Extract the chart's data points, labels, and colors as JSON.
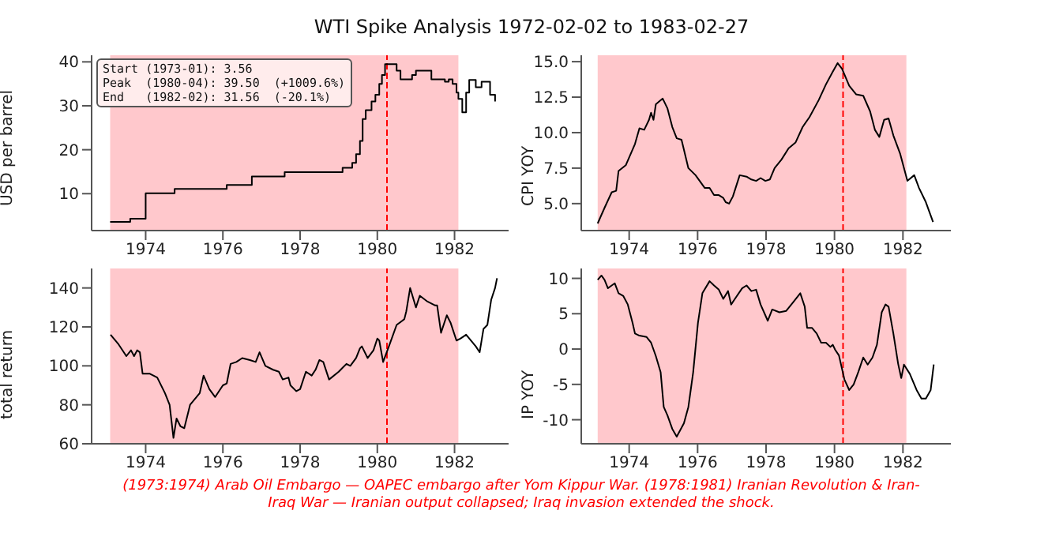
{
  "chart_data": [
    {
      "type": "step",
      "title": "WTI Spike Analysis 1972-02-02 to 1983-02-27",
      "ylabel": "USD per barrel",
      "color": "#000000",
      "annotations": [
        "Start (1973-01): 3.56",
        "Peak  (1980-04): 39.50  (+1009.6%)",
        "End   (1982-02): 31.56  (-20.1%)",
        "(1973:1974) Arab Oil Embargo — OAPEC embargo after Yom Kippur War. (1978:1981) Iranian Revolution & Iran-Iraq War — Iranian output collapsed; Iraq invasion extended the shock."
      ],
      "x": [
        1973.08,
        1973.6,
        1974.0,
        1974.75,
        1976.1,
        1976.75,
        1977.6,
        1979.1,
        1979.35,
        1979.45,
        1979.55,
        1979.62,
        1979.7,
        1979.85,
        1979.95,
        1980.05,
        1980.12,
        1980.2,
        1980.5,
        1980.6,
        1980.75,
        1980.9,
        1981.0,
        1981.3,
        1981.4,
        1981.75,
        1981.85,
        1981.95,
        1982.05,
        1982.1,
        1982.2,
        1982.3,
        1982.38,
        1982.55,
        1982.7,
        1982.8,
        1982.92,
        1983.05
      ],
      "values": [
        3.56,
        4.3,
        10.1,
        11.1,
        12.0,
        13.9,
        14.9,
        15.9,
        17,
        19,
        22,
        27,
        29,
        31,
        32.5,
        35,
        37,
        39.5,
        38,
        36,
        36,
        37,
        38,
        38,
        36,
        35.5,
        36,
        35,
        33,
        31.56,
        28.5,
        33,
        35.9,
        34.2,
        35.5,
        35.5,
        32.5,
        31
      ],
      "xlim": [
        1972.6,
        1983.4
      ],
      "xticks": [
        1974,
        1976,
        1978,
        1980,
        1982
      ],
      "ylim": [
        1.6,
        41.5
      ],
      "yticks": [
        10,
        20,
        30,
        40
      ],
      "bands": [
        {
          "axis": "x",
          "from": 1973.08,
          "to": 1982.1,
          "color": "#ffc8cc"
        }
      ],
      "ref_lines": [
        {
          "axis": "x",
          "value": 1980.25,
          "color": "#ff0000",
          "line_style": "dashed"
        }
      ]
    },
    {
      "type": "line",
      "ylabel": "CPI YOY",
      "color": "#000000",
      "x": [
        1973.08,
        1973.28,
        1973.49,
        1973.62,
        1973.69,
        1973.9,
        1974.17,
        1974.3,
        1974.44,
        1974.58,
        1974.64,
        1974.71,
        1974.78,
        1974.98,
        1975.12,
        1975.26,
        1975.39,
        1975.53,
        1975.73,
        1975.94,
        1976.21,
        1976.35,
        1976.48,
        1976.62,
        1976.75,
        1976.82,
        1976.92,
        1977.03,
        1977.23,
        1977.43,
        1977.57,
        1977.71,
        1977.84,
        1977.98,
        1978.11,
        1978.25,
        1978.45,
        1978.66,
        1978.86,
        1979.07,
        1979.27,
        1979.54,
        1979.75,
        1979.95,
        1980.09,
        1980.22,
        1980.43,
        1980.63,
        1980.84,
        1981.04,
        1981.18,
        1981.31,
        1981.45,
        1981.58,
        1981.72,
        1981.92,
        1982.13,
        1982.33,
        1982.47,
        1982.67,
        1982.88
      ],
      "values": [
        3.6,
        4.7,
        5.8,
        5.9,
        7.3,
        7.7,
        9.2,
        10.3,
        10.2,
        10.9,
        11.4,
        10.9,
        12.0,
        12.4,
        11.7,
        10.4,
        9.6,
        9.5,
        7.5,
        7.0,
        6.1,
        6.1,
        5.6,
        5.6,
        5.4,
        5.1,
        5.0,
        5.5,
        7.0,
        6.9,
        6.7,
        6.6,
        6.8,
        6.6,
        6.7,
        7.5,
        8.1,
        8.9,
        9.3,
        10.4,
        11.1,
        12.3,
        13.4,
        14.3,
        14.9,
        14.5,
        13.3,
        12.7,
        12.6,
        11.5,
        10.2,
        9.7,
        10.9,
        11.0,
        9.8,
        8.5,
        6.6,
        7.0,
        6.1,
        5.1,
        3.7
      ],
      "xlim": [
        1972.6,
        1983.4
      ],
      "xticks": [
        1974,
        1976,
        1978,
        1980,
        1982
      ],
      "ylim": [
        3.1,
        15.45
      ],
      "yticks": [
        {
          "value": 5,
          "label": "5.0"
        },
        {
          "value": 7.5,
          "label": "7.5"
        },
        {
          "value": 10,
          "label": "10.0"
        },
        {
          "value": 12.5,
          "label": "12.5"
        },
        {
          "value": 15,
          "label": "15.0"
        }
      ],
      "bands": [
        {
          "axis": "x",
          "from": 1973.08,
          "to": 1982.1,
          "color": "#ffc8cc"
        }
      ],
      "ref_lines": [
        {
          "axis": "x",
          "value": 1980.25,
          "color": "#ff0000",
          "line_style": "dashed"
        }
      ]
    },
    {
      "type": "line",
      "ylabel": "total return",
      "color": "#000000",
      "x": [
        1973.09,
        1973.3,
        1973.5,
        1973.62,
        1973.7,
        1973.78,
        1973.85,
        1973.92,
        1974.1,
        1974.3,
        1974.5,
        1974.62,
        1974.72,
        1974.8,
        1974.9,
        1975.0,
        1975.15,
        1975.4,
        1975.5,
        1975.65,
        1975.8,
        1976.0,
        1976.1,
        1976.2,
        1976.35,
        1976.5,
        1976.7,
        1976.85,
        1976.95,
        1977.1,
        1977.3,
        1977.45,
        1977.55,
        1977.7,
        1977.75,
        1977.9,
        1978.0,
        1978.15,
        1978.3,
        1978.4,
        1978.5,
        1978.6,
        1978.75,
        1979.0,
        1979.1,
        1979.2,
        1979.3,
        1979.45,
        1979.55,
        1979.6,
        1979.75,
        1979.9,
        1980.0,
        1980.05,
        1980.15,
        1980.3,
        1980.5,
        1980.7,
        1980.75,
        1980.85,
        1981.0,
        1981.1,
        1981.3,
        1981.5,
        1981.55,
        1981.65,
        1981.8,
        1981.9,
        1982.05,
        1982.15,
        1982.3,
        1982.55,
        1982.65,
        1982.75,
        1982.85,
        1982.95,
        1983.05,
        1983.1
      ],
      "values": [
        116,
        111,
        105,
        108,
        105,
        108,
        107,
        96,
        96,
        94,
        86,
        80,
        63,
        73,
        69,
        68,
        80,
        86,
        95,
        88,
        84,
        90,
        91,
        101,
        102,
        104,
        103,
        102,
        107,
        100,
        98,
        97,
        93,
        94,
        90,
        87,
        88,
        97,
        95,
        98,
        103,
        102,
        93,
        97,
        99,
        101,
        100,
        104,
        109,
        110,
        104,
        108,
        114,
        113,
        102,
        110,
        121,
        124,
        128,
        140,
        130,
        136,
        133,
        131,
        131,
        117,
        126,
        122,
        113,
        114,
        116,
        110,
        107,
        119,
        121,
        134,
        140,
        145
      ],
      "xlim": [
        1972.6,
        1983.4
      ],
      "xticks": [
        1974,
        1976,
        1978,
        1980,
        1982
      ],
      "ylim": [
        60,
        150
      ],
      "yticks": [
        60,
        80,
        100,
        120,
        140
      ],
      "bands": [
        {
          "axis": "x",
          "from": 1973.08,
          "to": 1982.1,
          "color": "#ffc8cc"
        }
      ],
      "ref_lines": [
        {
          "axis": "x",
          "value": 1980.25,
          "color": "#ff0000",
          "line_style": "dashed"
        }
      ]
    },
    {
      "type": "line",
      "ylabel": "IP YOY",
      "color": "#000000",
      "x": [
        1973.08,
        1973.19,
        1973.28,
        1973.38,
        1973.49,
        1973.58,
        1973.69,
        1973.83,
        1973.96,
        1974.1,
        1974.17,
        1974.3,
        1974.51,
        1974.64,
        1974.78,
        1974.92,
        1975.01,
        1975.12,
        1975.26,
        1975.39,
        1975.6,
        1975.73,
        1975.87,
        1976.01,
        1976.14,
        1976.35,
        1976.48,
        1976.62,
        1976.75,
        1976.89,
        1976.98,
        1977.09,
        1977.3,
        1977.43,
        1977.57,
        1977.71,
        1977.84,
        1978.05,
        1978.18,
        1978.39,
        1978.59,
        1978.79,
        1979.0,
        1979.13,
        1979.2,
        1979.34,
        1979.48,
        1979.61,
        1979.75,
        1979.88,
        1979.95,
        1980.02,
        1980.13,
        1980.29,
        1980.43,
        1980.56,
        1980.7,
        1980.84,
        1980.97,
        1981.11,
        1981.24,
        1981.38,
        1981.49,
        1981.58,
        1981.72,
        1981.86,
        1981.95,
        1982.03,
        1982.2,
        1982.4,
        1982.54,
        1982.67,
        1982.81,
        1982.9
      ],
      "values": [
        9.8,
        10.4,
        9.8,
        8.6,
        9.0,
        9.3,
        7.9,
        7.5,
        6.3,
        3.7,
        2.2,
        1.9,
        1.7,
        0.9,
        -1.0,
        -3.3,
        -8.2,
        -9.4,
        -11.3,
        -12.4,
        -10.5,
        -8.2,
        -3.3,
        3.7,
        7.9,
        9.6,
        9.0,
        8.4,
        7.1,
        8.2,
        6.3,
        7.1,
        8.6,
        9.0,
        8.2,
        8.4,
        6.3,
        4.0,
        5.6,
        5.2,
        5.4,
        6.6,
        7.9,
        6.0,
        3.0,
        3.0,
        2.2,
        0.9,
        0.9,
        0.3,
        0.6,
        -0.1,
        -0.9,
        -4.3,
        -5.8,
        -5.0,
        -3.2,
        -1.2,
        -2.2,
        -1.2,
        0.6,
        5.2,
        6.3,
        6.0,
        2.2,
        -2.1,
        -4.1,
        -2.2,
        -3.5,
        -5.8,
        -7.0,
        -7.0,
        -5.8,
        -2.2
      ],
      "xlim": [
        1972.6,
        1983.4
      ],
      "xticks": [
        1974,
        1976,
        1978,
        1980,
        1982
      ],
      "ylim": [
        -13.4,
        11.4
      ],
      "yticks": [
        -10,
        -5,
        0,
        5,
        10
      ],
      "bands": [
        {
          "axis": "x",
          "from": 1973.08,
          "to": 1982.1,
          "color": "#ffc8cc"
        }
      ],
      "ref_lines": [
        {
          "axis": "x",
          "value": 1980.25,
          "color": "#ff0000",
          "line_style": "dashed"
        }
      ]
    }
  ]
}
